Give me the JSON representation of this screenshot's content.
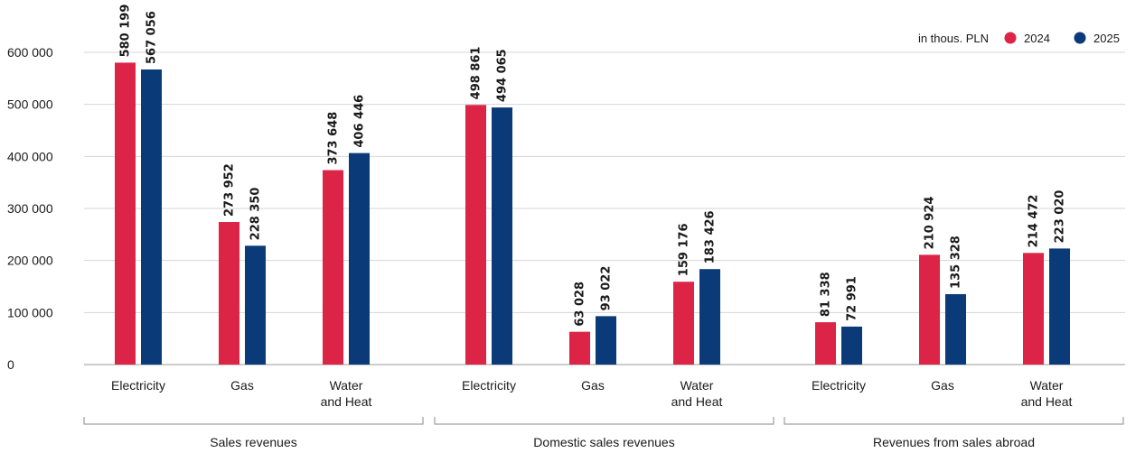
{
  "chart_data": {
    "type": "bar",
    "unit_label": "in thous. PLN",
    "ylim": [
      0,
      600000
    ],
    "y_ticks": [
      "0",
      "100 000",
      "200 000",
      "300 000",
      "400 000",
      "500 000",
      "600 000"
    ],
    "grid": true,
    "legend_position": "top-right",
    "groups": [
      {
        "name": "Sales revenues",
        "categories": [
          [
            "Electricity"
          ],
          [
            "Gas"
          ],
          [
            "Water",
            "and Heat"
          ]
        ],
        "values": {
          "2024": [
            580199,
            273952,
            373648
          ],
          "2025": [
            567056,
            228350,
            406446
          ]
        },
        "labels": {
          "2024": [
            "580 199",
            "273 952",
            "373 648"
          ],
          "2025": [
            "567 056",
            "228 350",
            "406 446"
          ]
        }
      },
      {
        "name": "Domestic sales revenues",
        "categories": [
          [
            "Electricity"
          ],
          [
            "Gas"
          ],
          [
            "Water",
            "and Heat"
          ]
        ],
        "values": {
          "2024": [
            498861,
            63028,
            159176
          ],
          "2025": [
            494065,
            93022,
            183426
          ]
        },
        "labels": {
          "2024": [
            "498 861",
            "63 028",
            "159 176"
          ],
          "2025": [
            "494 065",
            "93 022",
            "183 426"
          ]
        }
      },
      {
        "name": "Revenues from sales abroad",
        "categories": [
          [
            "Electricity"
          ],
          [
            "Gas"
          ],
          [
            "Water",
            "and Heat"
          ]
        ],
        "values": {
          "2024": [
            81338,
            210924,
            214472
          ],
          "2025": [
            72991,
            135328,
            223020
          ]
        },
        "labels": {
          "2024": [
            "81 338",
            "210 924",
            "214 472"
          ],
          "2025": [
            "72 991",
            "135 328",
            "223 020"
          ]
        }
      }
    ],
    "series": [
      {
        "name": "2024",
        "color": "#dc2446"
      },
      {
        "name": "2025",
        "color": "#0a3a78"
      }
    ]
  }
}
